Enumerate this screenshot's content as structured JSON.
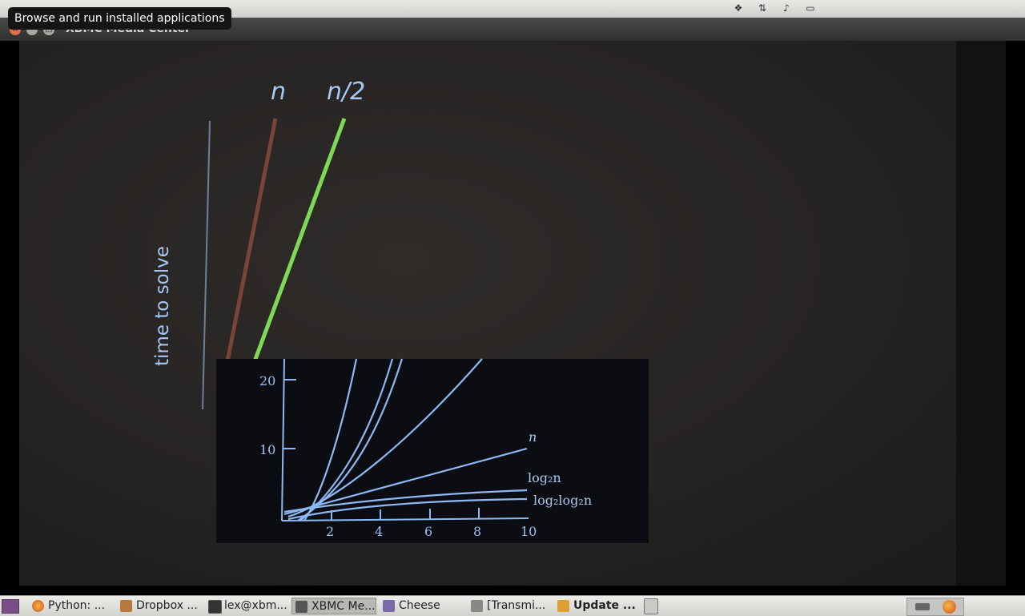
{
  "tooltip": "Browse and run installed applications",
  "window": {
    "title": "XBMC Media Center"
  },
  "video": {
    "upper_labels": {
      "n": "n",
      "n_half": "n/2",
      "ylabel": "time to solve"
    },
    "inset": {
      "y_ticks": [
        "20",
        "10"
      ],
      "x_ticks": [
        "2",
        "4",
        "6",
        "8",
        "10"
      ],
      "curve_labels": {
        "n": "n",
        "log": "log₂n",
        "loglog": "log₂log₂n"
      }
    }
  },
  "taskbar": {
    "items": [
      {
        "label": "Python: ...",
        "icon": "firefox-icon"
      },
      {
        "label": "Dropbox ...",
        "icon": "folder-icon"
      },
      {
        "label": "lex@xbm...",
        "icon": "terminal-icon"
      },
      {
        "label": "XBMC Me...",
        "icon": "xbmc-icon",
        "active": true
      },
      {
        "label": "Cheese",
        "icon": "cheese-icon"
      },
      {
        "label": "[Transmi...",
        "icon": "transmission-icon"
      },
      {
        "label": "Update ...",
        "icon": "update-icon",
        "bold": true
      }
    ]
  },
  "colors": {
    "plot_blue": "#8db9f2",
    "n_line": "#8a4a3a",
    "n_half_line": "#7ed957",
    "close": "#e26f4b"
  }
}
